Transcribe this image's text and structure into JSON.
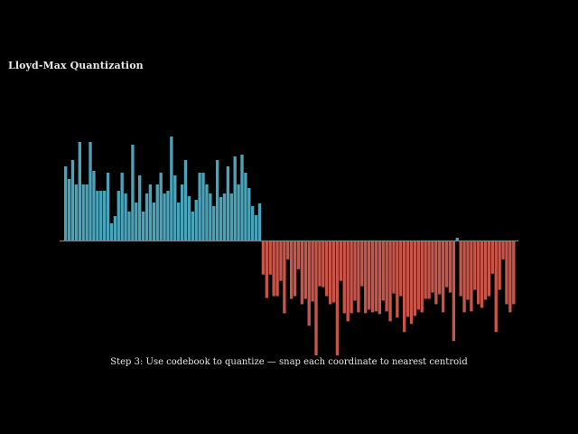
{
  "title": "Lloyd-Max Quantization",
  "caption": "Step 3: Use codebook to quantize — snap each coordinate to nearest centroid",
  "colors": {
    "background": "#000000",
    "text": "#e8e8e8",
    "positive_bar": "#4aa3b8",
    "negative_bar": "#c8554a",
    "baseline": "#808080"
  },
  "chart_data": {
    "type": "bar",
    "title": "Lloyd-Max Quantization",
    "xlabel": "",
    "ylabel": "",
    "grid": false,
    "legend": "none",
    "ylim": [
      -1.35,
      1.22
    ],
    "values": [
      0.82,
      0.68,
      0.89,
      0.62,
      1.09,
      0.62,
      0.62,
      1.09,
      0.77,
      0.55,
      0.55,
      0.55,
      0.75,
      0.19,
      0.27,
      0.55,
      0.75,
      0.52,
      0.32,
      1.06,
      0.42,
      0.72,
      0.32,
      0.52,
      0.62,
      0.42,
      0.62,
      0.75,
      0.52,
      0.55,
      1.15,
      0.72,
      0.42,
      0.62,
      0.89,
      0.49,
      0.32,
      0.45,
      0.75,
      0.75,
      0.62,
      0.52,
      0.38,
      0.89,
      0.48,
      0.52,
      0.82,
      0.52,
      0.93,
      0.62,
      0.95,
      0.75,
      0.58,
      0.38,
      0.28,
      0.41,
      -0.38,
      -0.64,
      -0.38,
      -0.62,
      -0.62,
      -0.45,
      -0.81,
      -0.21,
      -0.65,
      -0.62,
      -0.32,
      -0.71,
      -0.65,
      -0.95,
      -0.68,
      -1.28,
      -0.51,
      -0.52,
      -0.62,
      -0.71,
      -0.69,
      -1.28,
      -0.45,
      -0.81,
      -0.9,
      -0.81,
      -0.67,
      -0.8,
      -0.51,
      -0.81,
      -0.77,
      -0.8,
      -0.79,
      -0.82,
      -0.67,
      -0.79,
      -0.9,
      -0.59,
      -0.86,
      -0.62,
      -1.02,
      -0.85,
      -0.93,
      -0.84,
      -0.77,
      -0.8,
      -0.65,
      -0.65,
      -0.58,
      -0.71,
      -0.6,
      -0.8,
      -0.52,
      -0.58,
      -1.12,
      0.03,
      -0.62,
      -0.8,
      -0.66,
      -0.79,
      -0.55,
      -0.71,
      -0.75,
      -0.66,
      -0.62,
      -0.37,
      -1.02,
      -0.55,
      -0.21,
      -0.71,
      -0.8,
      -0.71
    ]
  }
}
